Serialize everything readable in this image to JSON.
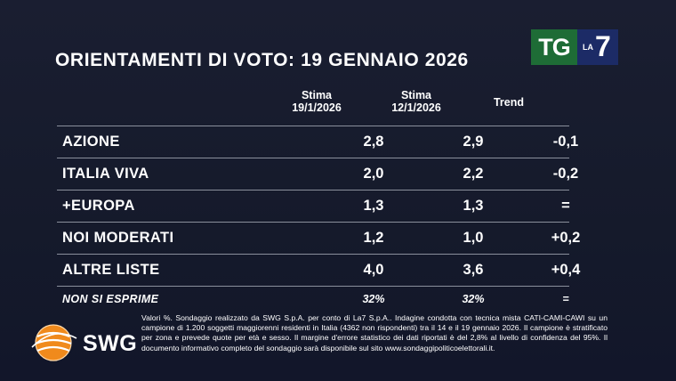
{
  "title": "ORIENTAMENTI DI VOTO: 19 GENNAIO 2026",
  "broadcaster": {
    "tg": "TG",
    "la": "LA",
    "seven": "7"
  },
  "colors": {
    "background": "#161a2c",
    "tg_green": "#1e6c36",
    "la7_blue": "#1c2b66",
    "swg_orange": "#f08a1c",
    "rule": "#8a8f9c"
  },
  "chart_data": {
    "type": "table",
    "title": "ORIENTAMENTI DI VOTO: 19 GENNAIO 2026",
    "columns": [
      {
        "line1": "Stima",
        "line2": "19/1/2026"
      },
      {
        "line1": "Stima",
        "line2": "12/1/2026"
      },
      {
        "line1": "Trend",
        "line2": ""
      }
    ],
    "rows": [
      {
        "label": "AZIONE",
        "stima_19": "2,8",
        "stima_12": "2,9",
        "trend": "-0,1"
      },
      {
        "label": "ITALIA VIVA",
        "stima_19": "2,0",
        "stima_12": "2,2",
        "trend": "-0,2"
      },
      {
        "label": "+EUROPA",
        "stima_19": "1,3",
        "stima_12": "1,3",
        "trend": "="
      },
      {
        "label": "NOI MODERATI",
        "stima_19": "1,2",
        "stima_12": "1,0",
        "trend": "+0,2"
      },
      {
        "label": "ALTRE LISTE",
        "stima_19": "4,0",
        "stima_12": "3,6",
        "trend": "+0,4"
      },
      {
        "label": "NON SI ESPRIME",
        "stima_19": "32%",
        "stima_12": "32%",
        "trend": "="
      }
    ]
  },
  "pollster": {
    "name": "SWG"
  },
  "footnote": "Valori %. Sondaggio realizzato da SWG S.p.A. per conto di La7 S.p.A.. Indagine condotta con tecnica mista CATI-CAMI-CAWI su un campione di 1.200 soggetti maggiorenni residenti in Italia (4362 non rispondenti) tra il 14 e il 19 gennaio 2026. Il campione è stratificato per zona e prevede quote per età e sesso. Il margine d'errore statistico dei dati riportati è del 2,8% al livello di confidenza del 95%. Il documento informativo completo del sondaggio sarà disponibile sul sito www.sondaggipoliticoelettorali.it."
}
